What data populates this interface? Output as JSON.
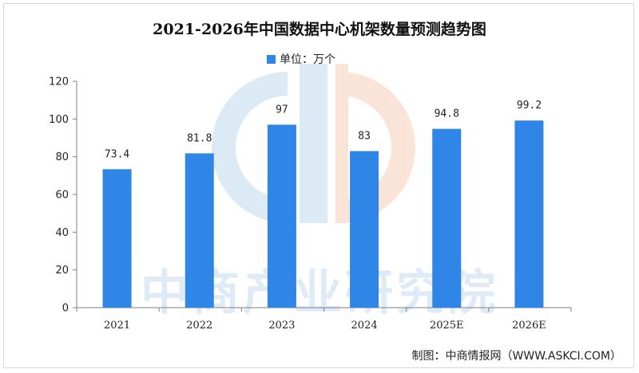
{
  "chart_data": {
    "type": "bar",
    "title": "2021-2026年中国数据中心机架数量预测趋势图",
    "legend": {
      "label": "单位：万个",
      "placement": "top-center"
    },
    "categories": [
      "2021",
      "2022",
      "2023",
      "2024",
      "2025E",
      "2026E"
    ],
    "values": [
      73.4,
      81.8,
      97,
      83,
      94.8,
      99.2
    ],
    "data_labels": [
      "73.4",
      "81.8",
      "97",
      "83",
      "94.8",
      "99.2"
    ],
    "ylim": [
      0,
      120
    ],
    "yticks": [
      0,
      20,
      40,
      60,
      80,
      100,
      120
    ],
    "grid": false,
    "bar_color": "#2f86e6",
    "xlabel": "",
    "ylabel": ""
  },
  "source": "制图：中商情报网（WWW.ASKCI.COM）",
  "watermark": {
    "text": "中商产业研究院"
  }
}
